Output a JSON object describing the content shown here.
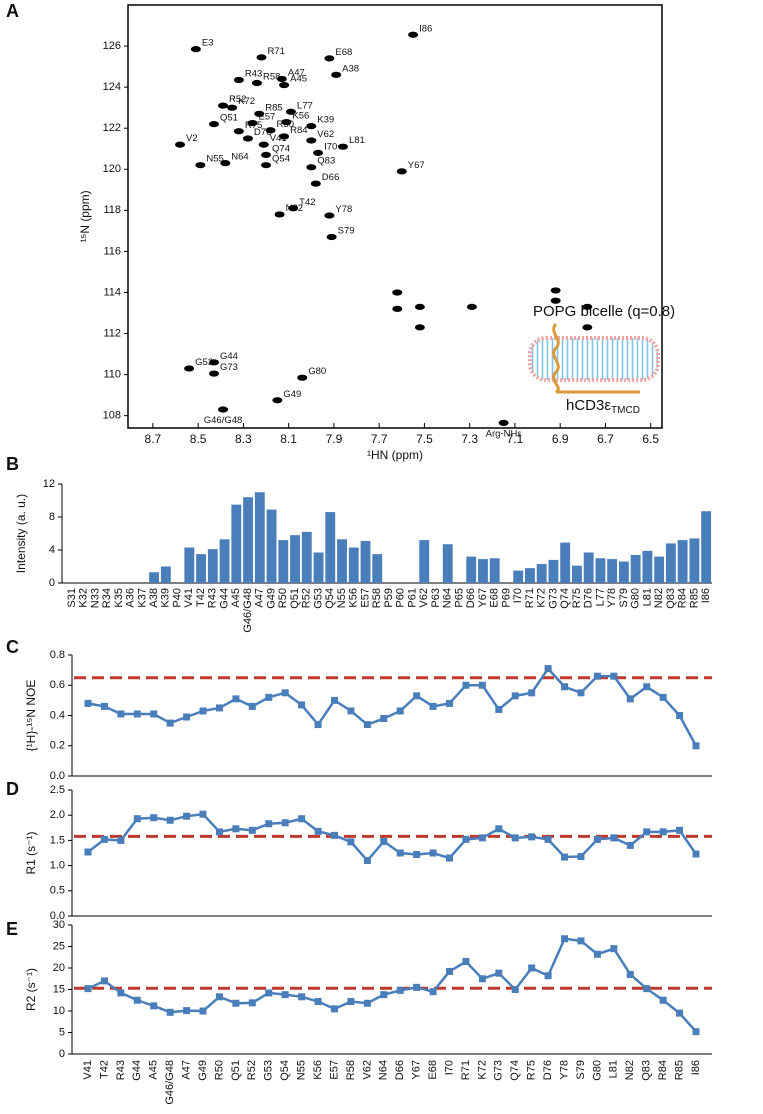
{
  "chart_data": [
    {
      "panel": "A",
      "type": "scatter",
      "xlabel": "¹HN (ppm)",
      "ylabel": "¹⁵N (ppm)",
      "xlim": [
        8.81,
        6.45
      ],
      "xticks": [
        8.7,
        8.5,
        8.3,
        8.1,
        7.9,
        7.7,
        7.5,
        7.3,
        7.1,
        6.9,
        6.7,
        6.5
      ],
      "ylim": [
        107.4,
        128
      ],
      "yticks": [
        108,
        110,
        112,
        114,
        116,
        118,
        120,
        122,
        124,
        126
      ],
      "color": "#000000",
      "labels": [
        "G46/G48",
        "G49",
        "Arg-NHε",
        "G53",
        "G73",
        "G44",
        "G80",
        "S79",
        "N82",
        "Y78",
        "T42",
        "D66",
        "N55",
        "N64",
        "Q54",
        "Q83",
        "Y67",
        "I70",
        "L81",
        "V2",
        "Q74",
        "D76",
        "V41",
        "V62",
        "R75",
        "R50",
        "R84",
        "Q51",
        "E57",
        "K39",
        "K56",
        "R85",
        "L77",
        "K72",
        "R52",
        "R58",
        "A45",
        "R43",
        "A47",
        "A38",
        "E68",
        "R71",
        "E3",
        "I86",
        null,
        null,
        null,
        null,
        null,
        null,
        null,
        null,
        null
      ],
      "x": [
        8.39,
        8.15,
        7.15,
        8.54,
        8.43,
        8.43,
        8.04,
        7.91,
        8.14,
        7.92,
        8.08,
        7.98,
        8.49,
        8.38,
        8.2,
        8.0,
        7.6,
        7.97,
        7.86,
        8.58,
        8.2,
        8.28,
        8.21,
        8.0,
        8.32,
        8.18,
        8.12,
        8.43,
        8.26,
        8.0,
        8.11,
        8.23,
        8.09,
        8.35,
        8.39,
        8.24,
        8.12,
        8.32,
        8.13,
        7.89,
        7.92,
        8.22,
        8.51,
        7.55,
        7.52,
        7.52,
        7.62,
        7.62,
        7.29,
        6.78,
        6.78,
        6.92,
        6.92
      ],
      "y": [
        108.3,
        108.75,
        107.65,
        110.3,
        110.05,
        110.6,
        109.85,
        116.7,
        117.8,
        117.75,
        118.1,
        119.3,
        120.2,
        120.3,
        120.2,
        120.1,
        119.9,
        120.8,
        121.1,
        121.2,
        120.7,
        121.5,
        121.2,
        121.4,
        121.85,
        121.9,
        121.6,
        122.2,
        122.25,
        122.1,
        122.3,
        122.7,
        122.8,
        123.0,
        123.1,
        124.2,
        124.1,
        124.35,
        124.4,
        124.6,
        125.4,
        125.45,
        125.85,
        126.55,
        112.3,
        113.3,
        113.2,
        114.0,
        113.3,
        112.3,
        113.3,
        113.6,
        114.1
      ],
      "annotations": [
        "POPG bicelle (q=0.8)",
        "hCD3ε",
        "TMCD"
      ]
    },
    {
      "panel": "B",
      "type": "bar",
      "ylabel": "Intensity (a. u.)",
      "ylim": [
        0,
        12
      ],
      "yticks": [
        0,
        4,
        8,
        12
      ],
      "color": "#4a7ebb",
      "categories": [
        "S31",
        "K32",
        "N33",
        "R34",
        "K35",
        "A36",
        "K37",
        "A38",
        "K39",
        "P40",
        "V41",
        "T42",
        "R43",
        "G44",
        "A45",
        "G46/G48",
        "A47",
        "G49",
        "R50",
        "Q51",
        "R52",
        "G53",
        "Q54",
        "N55",
        "K56",
        "E57",
        "R58",
        "P59",
        "P60",
        "P61",
        "V62",
        "P63",
        "N64",
        "P65",
        "D66",
        "Y67",
        "E68",
        "P69",
        "I70",
        "R71",
        "K72",
        "G73",
        "Q74",
        "R75",
        "D76",
        "L77",
        "Y78",
        "S79",
        "G80",
        "L81",
        "N82",
        "Q83",
        "R84",
        "R85",
        "I86"
      ],
      "values": [
        0,
        0,
        0,
        0,
        0,
        0,
        0,
        1.3,
        2.0,
        0,
        4.3,
        3.5,
        4.1,
        5.3,
        9.5,
        10.4,
        11.0,
        8.9,
        5.2,
        5.8,
        6.2,
        3.7,
        8.6,
        5.3,
        4.3,
        5.1,
        3.5,
        0,
        0,
        0,
        5.2,
        0,
        4.7,
        0,
        3.2,
        2.9,
        3.0,
        0,
        1.5,
        1.8,
        2.3,
        2.8,
        4.9,
        2.1,
        3.7,
        3.0,
        2.9,
        2.6,
        3.4,
        3.9,
        3.2,
        4.8,
        5.2,
        5.4,
        8.7
      ]
    },
    {
      "panel": "C",
      "type": "line",
      "ylabel": "{¹H}-¹⁵N NOE",
      "ylim": [
        0,
        0.8
      ],
      "yticks": [
        {
          "value": 0,
          "label": "0.0"
        },
        0.2,
        0.4,
        0.6,
        0.8
      ],
      "color": "#4a7ebb",
      "reference": 0.65,
      "reference_color": "#c0392b",
      "values": [
        0.48,
        0.46,
        0.41,
        0.41,
        0.41,
        0.35,
        0.39,
        0.43,
        0.45,
        0.51,
        0.46,
        0.52,
        0.55,
        0.47,
        0.34,
        0.5,
        0.43,
        0.34,
        0.38,
        0.43,
        0.53,
        0.46,
        0.48,
        0.6,
        0.6,
        0.44,
        0.53,
        0.55,
        0.71,
        0.59,
        0.55,
        0.66,
        0.66,
        0.51,
        0.59,
        0.52,
        0.4,
        0.2
      ]
    },
    {
      "panel": "D",
      "type": "line",
      "ylabel": "R1 (s⁻¹)",
      "ylim": [
        0,
        2.5
      ],
      "yticks": [
        {
          "value": 0,
          "label": "0.0"
        },
        0.5,
        {
          "value": 1,
          "label": "1.0"
        },
        1.5,
        {
          "value": 2,
          "label": "2.0"
        },
        2.5
      ],
      "color": "#4a7ebb",
      "reference": 1.58,
      "reference_color": "#c0392b",
      "values": [
        1.27,
        1.52,
        1.5,
        1.93,
        1.95,
        1.9,
        1.98,
        2.02,
        1.67,
        1.73,
        1.7,
        1.83,
        1.85,
        1.93,
        1.68,
        1.6,
        1.47,
        1.1,
        1.48,
        1.25,
        1.22,
        1.25,
        1.15,
        1.52,
        1.55,
        1.73,
        1.55,
        1.57,
        1.52,
        1.17,
        1.18,
        1.52,
        1.55,
        1.4,
        1.67,
        1.67,
        1.7,
        1.23
      ]
    },
    {
      "panel": "E",
      "type": "line",
      "ylabel": "R2 (s⁻¹)",
      "ylim": [
        0,
        30
      ],
      "yticks": [
        0,
        5,
        10,
        15,
        20,
        25,
        30
      ],
      "color": "#4a7ebb",
      "reference": 15.3,
      "reference_color": "#c0392b",
      "categories": [
        "V41",
        "T42",
        "R43",
        "G44",
        "A45",
        "G46/G48",
        "A47",
        "G49",
        "R50",
        "Q51",
        "R52",
        "G53",
        "Q54",
        "N55",
        "K56",
        "E57",
        "R58",
        "V62",
        "N64",
        "D66",
        "Y67",
        "E68",
        "I70",
        "R71",
        "K72",
        "G73",
        "Q74",
        "R75",
        "D76",
        "Y78",
        "S79",
        "G80",
        "L81",
        "N82",
        "Q83",
        "R84",
        "R85",
        "I86"
      ],
      "values": [
        15.2,
        17.0,
        14.2,
        12.5,
        11.2,
        9.7,
        10.1,
        10.0,
        13.3,
        11.8,
        11.9,
        14.2,
        13.8,
        13.3,
        12.2,
        10.5,
        12.2,
        11.8,
        13.8,
        14.8,
        15.5,
        14.5,
        19.2,
        21.5,
        17.5,
        18.8,
        15.0,
        20.0,
        18.2,
        26.8,
        26.3,
        23.2,
        24.5,
        18.5,
        15.2,
        12.5,
        9.5,
        5.2
      ]
    }
  ]
}
